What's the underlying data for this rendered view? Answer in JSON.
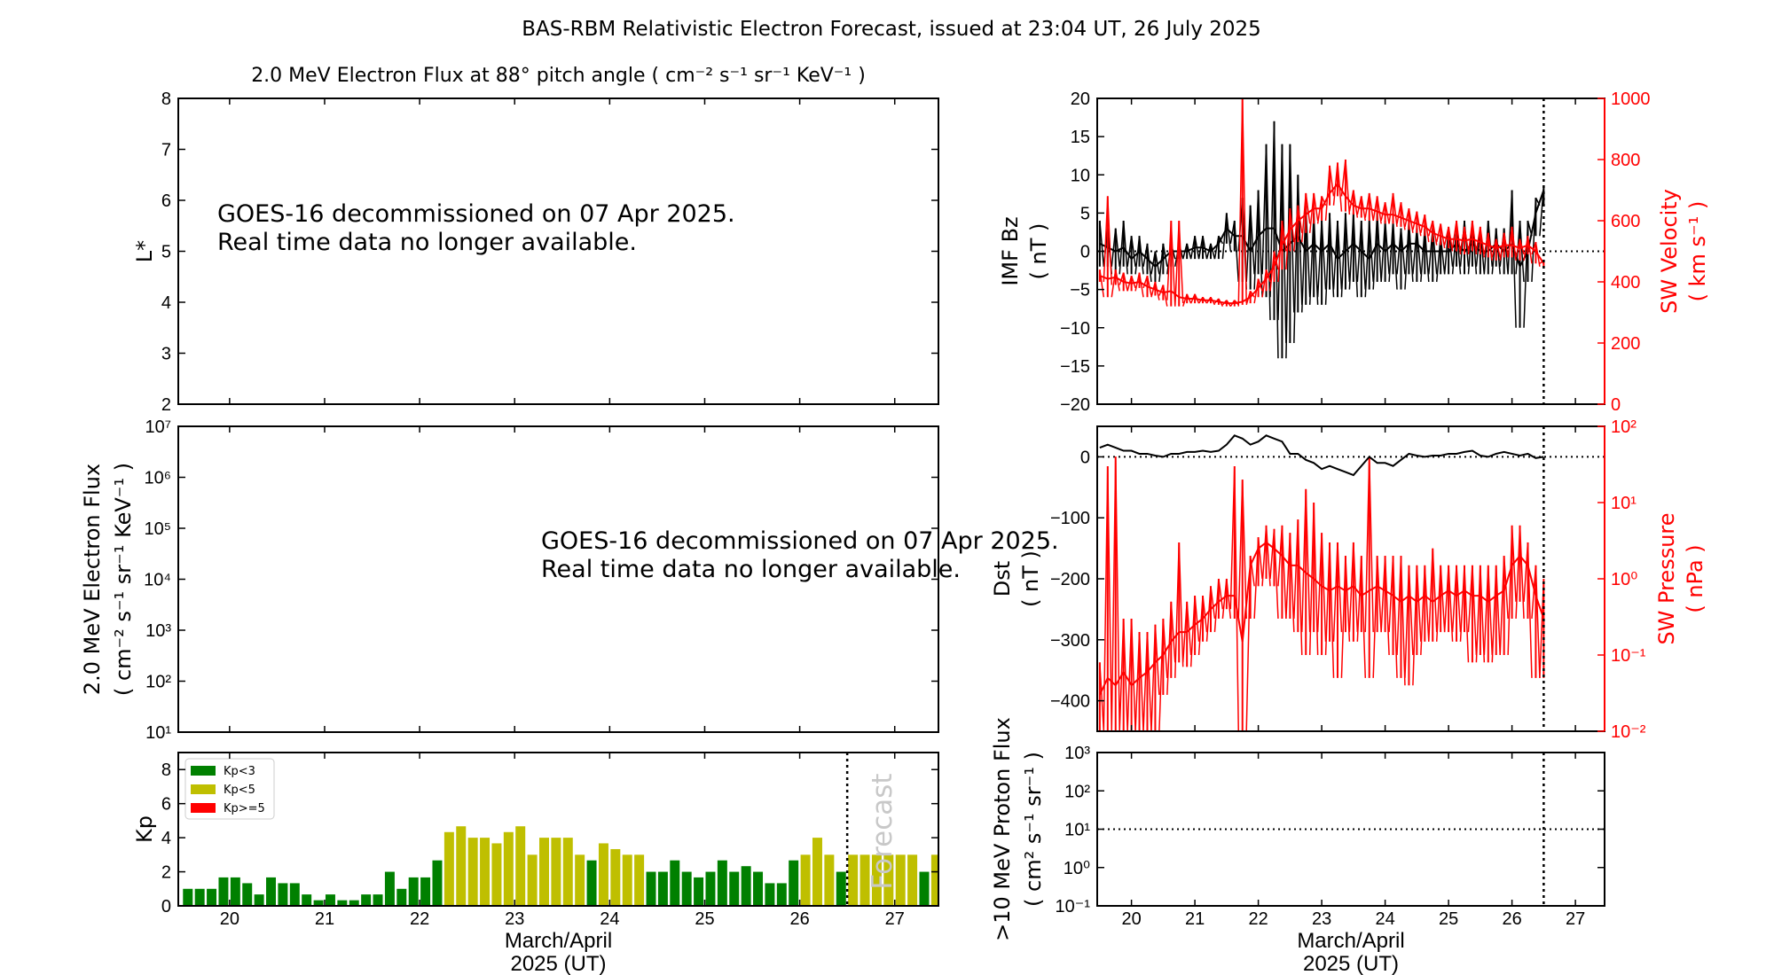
{
  "title": "BAS-RBM Relativistic Electron Forecast, issued at 23:04 UT, 26 July 2025",
  "colors": {
    "kp_low": "#008000",
    "kp_mid": "#bfbf00",
    "kp_high": "#ff0000",
    "red_axis": "#ff0000",
    "forecast_text": "#c8c8c8"
  },
  "chart_data": [
    {
      "type": "line",
      "title": "2.0 MeV Electron Flux at 88° pitch angle ( cm⁻² s⁻¹ sr⁻¹ KeV⁻¹ )",
      "ylabel": [
        "L*"
      ],
      "ylim": [
        2,
        8
      ],
      "yscale": "linear",
      "yticks": [
        2,
        3,
        4,
        5,
        6,
        7,
        8
      ],
      "ytick_labels": [
        "2",
        "3",
        "4",
        "5",
        "6",
        "7",
        "8"
      ],
      "xlim": [
        19.46,
        27.46
      ],
      "xticks": [
        20,
        21,
        22,
        23,
        24,
        25,
        26,
        27
      ],
      "annotation": [
        "GOES-16 decommissioned on 07 Apr 2025.",
        "Real time data no longer available."
      ]
    },
    {
      "type": "line",
      "ylabel": [
        "2.0 MeV Electron Flux",
        "( cm⁻² s⁻¹ sr⁻¹ KeV⁻¹ )"
      ],
      "ylim": [
        10,
        10000000
      ],
      "yscale": "log",
      "yticks": [
        10,
        100,
        1000,
        10000,
        100000,
        1000000,
        10000000
      ],
      "ytick_labels": [
        "10¹",
        "10²",
        "10³",
        "10⁴",
        "10⁵",
        "10⁶",
        "10⁷"
      ],
      "xlim": [
        19.46,
        27.46
      ],
      "xticks": [
        20,
        21,
        22,
        23,
        24,
        25,
        26,
        27
      ],
      "annotation": [
        "GOES-16 decommissioned on 07 Apr 2025.",
        "Real time data no longer available."
      ]
    },
    {
      "type": "bar",
      "ylabel": [
        "Kp"
      ],
      "ylim": [
        0,
        9
      ],
      "yscale": "linear",
      "yticks": [
        0,
        2,
        4,
        6,
        8
      ],
      "ytick_labels": [
        "0",
        "2",
        "4",
        "6",
        "8"
      ],
      "xlim": [
        19.46,
        27.46
      ],
      "xticks": [
        20,
        21,
        22,
        23,
        24,
        25,
        26,
        27
      ],
      "xtick_labels": [
        "20",
        "21",
        "22",
        "23",
        "24",
        "25",
        "26",
        "27"
      ],
      "xlabel": [
        "March/April",
        "2025 (UT)"
      ],
      "forecast_start": 26.5,
      "forecast_label": "Forecast",
      "legend": [
        {
          "label": "Kp<3",
          "color": "#008000"
        },
        {
          "label": "Kp<5",
          "color": "#bfbf00"
        },
        {
          "label": "Kp>=5",
          "color": "#ff0000"
        }
      ],
      "legend_position": "upper-left",
      "bar_start": 19.5,
      "bar_width_days": 0.125,
      "values": [
        1,
        1,
        1,
        1.67,
        1.67,
        1.33,
        0.67,
        1.67,
        1.33,
        1.33,
        0.67,
        0.33,
        0.67,
        0.33,
        0.33,
        0.67,
        0.67,
        2,
        1,
        1.67,
        1.67,
        2.67,
        4.33,
        4.67,
        4,
        4,
        3.67,
        4.33,
        4.67,
        3,
        4,
        4,
        4,
        3,
        2.67,
        3.67,
        3.33,
        3,
        3,
        2,
        2,
        2.67,
        2,
        1.67,
        2,
        2.67,
        2,
        2.33,
        2,
        1.33,
        1.33,
        2.67,
        3,
        4,
        3,
        2,
        3,
        3,
        3,
        3,
        3,
        3,
        2,
        3
      ]
    },
    {
      "type": "line",
      "ylabel": [
        "IMF Bz",
        "( nT )"
      ],
      "ylim": [
        -20,
        20
      ],
      "yscale": "linear",
      "yticks": [
        -20,
        -15,
        -10,
        -5,
        0,
        5,
        10,
        15,
        20
      ],
      "ytick_labels": [
        "−20",
        "−15",
        "−10",
        "−5",
        "0",
        "5",
        "10",
        "15",
        "20"
      ],
      "ylabel_right": [
        "SW Velocity",
        "( km s⁻¹ )"
      ],
      "ylim_right": [
        0,
        1000
      ],
      "yscale_right": "linear",
      "yticks_right": [
        0,
        200,
        400,
        600,
        800,
        1000
      ],
      "ytick_labels_right": [
        "0",
        "200",
        "400",
        "600",
        "800",
        "1000"
      ],
      "xlim": [
        19.46,
        27.46
      ],
      "xticks": [
        20,
        21,
        22,
        23,
        24,
        25,
        26,
        27
      ],
      "forecast_start": 26.5,
      "hline": 0,
      "t": [
        19.5,
        19.625,
        19.75,
        19.875,
        20,
        20.125,
        20.25,
        20.375,
        20.5,
        20.625,
        20.75,
        20.875,
        21,
        21.125,
        21.25,
        21.375,
        21.5,
        21.625,
        21.75,
        21.875,
        22,
        22.125,
        22.25,
        22.375,
        22.5,
        22.625,
        22.75,
        22.875,
        23,
        23.125,
        23.25,
        23.375,
        23.5,
        23.625,
        23.75,
        23.875,
        24,
        24.125,
        24.25,
        24.375,
        24.5,
        24.625,
        24.75,
        24.875,
        25,
        25.125,
        25.25,
        25.375,
        25.5,
        25.625,
        25.75,
        25.875,
        26,
        26.125,
        26.25,
        26.375,
        26.5
      ],
      "series": [
        {
          "axis": "left",
          "color": "#000000",
          "mean": [
            1,
            0.5,
            0,
            0.5,
            -1,
            0,
            -1,
            -2,
            -1,
            0,
            0,
            0,
            0.5,
            0.5,
            0,
            1,
            3,
            2,
            2,
            0,
            2,
            3,
            3,
            0,
            1,
            2,
            0,
            1,
            0,
            1,
            -1,
            0,
            1,
            0,
            -1,
            1,
            0,
            1,
            0,
            1,
            1,
            0,
            0,
            0,
            0,
            1,
            0,
            1,
            0,
            0,
            1,
            0,
            1,
            -2,
            0,
            5,
            8
          ],
          "min": [
            -2,
            -2,
            -3,
            -2,
            -3,
            -2,
            -3,
            -4,
            -3,
            -2,
            -1,
            -1,
            -1,
            -1,
            -1,
            -1,
            1,
            0,
            -4,
            -5,
            -3,
            -6,
            -9,
            -14,
            -12,
            -8,
            -7,
            -6,
            -7,
            -5,
            -6,
            -5,
            -4,
            -6,
            -5,
            -4,
            -4,
            -3,
            -5,
            -3,
            -4,
            -3,
            -4,
            -3,
            -3,
            -2,
            -3,
            -2,
            -3,
            -3,
            -2,
            -3,
            -3,
            -10,
            -4,
            2,
            6
          ],
          "max": [
            4,
            3,
            3,
            4,
            2,
            2,
            1,
            0,
            1,
            1,
            1,
            1,
            2,
            2,
            1,
            2,
            5,
            4,
            7,
            6,
            8,
            14,
            17,
            14,
            14,
            10,
            6,
            5,
            4,
            5,
            4,
            5,
            5,
            4,
            4,
            5,
            4,
            4,
            3,
            4,
            3,
            3,
            3,
            2,
            3,
            3,
            4,
            4,
            3,
            4,
            3,
            3,
            8,
            4,
            4,
            7,
            8.5
          ]
        },
        {
          "axis": "right",
          "color": "#ff0000",
          "mean": [
            420,
            410,
            415,
            400,
            395,
            400,
            385,
            375,
            365,
            370,
            350,
            345,
            345,
            340,
            340,
            335,
            330,
            330,
            335,
            350,
            380,
            410,
            450,
            520,
            570,
            600,
            620,
            640,
            640,
            690,
            720,
            680,
            650,
            640,
            640,
            630,
            620,
            620,
            610,
            600,
            590,
            580,
            560,
            550,
            540,
            540,
            535,
            540,
            530,
            520,
            510,
            520,
            520,
            510,
            520,
            500,
            460
          ],
          "min": [
            400,
            350,
            390,
            370,
            370,
            380,
            350,
            355,
            340,
            320,
            320,
            330,
            330,
            330,
            330,
            325,
            320,
            320,
            325,
            330,
            350,
            370,
            400,
            440,
            500,
            530,
            560,
            590,
            600,
            650,
            680,
            630,
            620,
            610,
            600,
            600,
            590,
            590,
            580,
            570,
            560,
            550,
            530,
            520,
            510,
            500,
            490,
            500,
            490,
            480,
            470,
            480,
            480,
            470,
            490,
            460,
            450
          ],
          "max": [
            440,
            680,
            440,
            430,
            420,
            430,
            420,
            400,
            390,
            600,
            600,
            360,
            360,
            350,
            350,
            345,
            340,
            340,
            1000,
            370,
            410,
            440,
            500,
            600,
            640,
            650,
            690,
            690,
            680,
            780,
            790,
            800,
            700,
            680,
            690,
            680,
            660,
            690,
            660,
            640,
            630,
            620,
            600,
            590,
            580,
            600,
            580,
            600,
            580,
            560,
            540,
            560,
            580,
            540,
            550,
            530,
            470
          ]
        }
      ]
    },
    {
      "type": "line",
      "ylabel": [
        "Dst",
        "( nT )"
      ],
      "ylim": [
        -450,
        50
      ],
      "yscale": "linear",
      "yticks": [
        0,
        -100,
        -200,
        -300,
        -400
      ],
      "ytick_labels": [
        "0",
        "−100",
        "−200",
        "−300",
        "−400"
      ],
      "ylabel_right": [
        "SW Pressure",
        "( nPa )"
      ],
      "ylim_right": [
        0.01,
        100
      ],
      "yscale_right": "log",
      "yticks_right": [
        0.01,
        0.1,
        1,
        10,
        100
      ],
      "ytick_labels_right": [
        "10⁻²",
        "10⁻¹",
        "10⁰",
        "10¹",
        "10²"
      ],
      "xlim": [
        19.46,
        27.46
      ],
      "xticks": [
        20,
        21,
        22,
        23,
        24,
        25,
        26,
        27
      ],
      "forecast_start": 26.5,
      "hline": 0,
      "t": [
        19.5,
        19.625,
        19.75,
        19.875,
        20,
        20.125,
        20.25,
        20.375,
        20.5,
        20.625,
        20.75,
        20.875,
        21,
        21.125,
        21.25,
        21.375,
        21.5,
        21.625,
        21.75,
        21.875,
        22,
        22.125,
        22.25,
        22.375,
        22.5,
        22.625,
        22.75,
        22.875,
        23,
        23.125,
        23.25,
        23.375,
        23.5,
        23.625,
        23.75,
        23.875,
        24,
        24.125,
        24.25,
        24.375,
        24.5,
        24.625,
        24.75,
        24.875,
        25,
        25.125,
        25.25,
        25.375,
        25.5,
        25.625,
        25.75,
        25.875,
        26,
        26.125,
        26.25,
        26.375,
        26.5
      ],
      "series": [
        {
          "axis": "right",
          "color": "#ff0000",
          "mean": [
            0.03,
            0.05,
            0.04,
            0.06,
            0.04,
            0.05,
            0.06,
            0.08,
            0.1,
            0.15,
            0.2,
            0.2,
            0.25,
            0.3,
            0.4,
            0.5,
            0.6,
            0.6,
            0.15,
            1.5,
            2.5,
            3,
            2.5,
            2,
            1.5,
            1.5,
            1.2,
            1,
            0.8,
            0.7,
            0.8,
            0.7,
            0.8,
            0.6,
            0.7,
            0.8,
            0.7,
            0.6,
            0.5,
            0.6,
            0.5,
            0.6,
            0.5,
            0.6,
            0.7,
            0.6,
            0.7,
            0.6,
            0.6,
            0.5,
            0.6,
            0.7,
            1.5,
            2,
            1.5,
            0.6,
            0.3
          ],
          "min": [
            0.01,
            0.01,
            0.01,
            0.01,
            0.01,
            0.01,
            0.01,
            0.01,
            0.03,
            0.05,
            0.08,
            0.07,
            0.1,
            0.15,
            0.2,
            0.3,
            0.4,
            0.3,
            0.01,
            0.3,
            0.8,
            1,
            0.8,
            0.3,
            0.3,
            0.2,
            0.1,
            0.2,
            0.1,
            0.15,
            0.05,
            0.2,
            0.15,
            0.2,
            0.05,
            0.2,
            0.2,
            0.1,
            0.05,
            0.04,
            0.1,
            0.15,
            0.15,
            0.2,
            0.2,
            0.15,
            0.2,
            0.08,
            0.1,
            0.08,
            0.1,
            0.1,
            0.3,
            0.5,
            0.3,
            0.05,
            0.05
          ],
          "max": [
            0.08,
            30,
            40,
            0.3,
            0.3,
            0.2,
            0.2,
            0.25,
            0.3,
            0.5,
            3,
            0.5,
            0.6,
            0.6,
            0.8,
            1,
            1,
            30,
            20,
            2,
            3.5,
            5,
            4.5,
            5,
            4,
            6,
            15,
            10,
            4,
            3,
            3,
            2,
            3,
            2,
            40,
            2,
            2,
            2,
            2,
            1.5,
            1.5,
            1.5,
            2.5,
            1.5,
            1.5,
            1.5,
            1.5,
            1.5,
            1.5,
            1.5,
            1.5,
            2,
            5,
            5,
            3,
            1.5,
            1
          ]
        },
        {
          "axis": "left",
          "color": "#000000",
          "style": "smooth",
          "mean": [
            15,
            20,
            15,
            10,
            10,
            5,
            5,
            2,
            0,
            5,
            5,
            8,
            8,
            10,
            8,
            10,
            20,
            35,
            30,
            20,
            25,
            35,
            30,
            25,
            5,
            5,
            -5,
            -10,
            -20,
            -15,
            -20,
            -25,
            -30,
            -15,
            0,
            -10,
            -10,
            -15,
            -5,
            5,
            2,
            0,
            2,
            2,
            5,
            5,
            8,
            10,
            2,
            0,
            5,
            8,
            5,
            2,
            5,
            -2,
            0
          ]
        }
      ]
    },
    {
      "type": "line",
      "ylabel": [
        ">10 MeV Proton Flux",
        "( cm² s⁻¹ sr⁻¹ )"
      ],
      "ylim": [
        0.1,
        1000
      ],
      "yscale": "log",
      "yticks": [
        0.1,
        1,
        10,
        100,
        1000
      ],
      "ytick_labels": [
        "10⁻¹",
        "10⁰",
        "10¹",
        "10²",
        "10³"
      ],
      "xlim": [
        19.46,
        27.46
      ],
      "xticks": [
        20,
        21,
        22,
        23,
        24,
        25,
        26,
        27
      ],
      "xtick_labels": [
        "20",
        "21",
        "22",
        "23",
        "24",
        "25",
        "26",
        "27"
      ],
      "xlabel": [
        "March/April",
        "2025 (UT)"
      ],
      "forecast_start": 26.5,
      "hline": 10,
      "series": []
    }
  ]
}
